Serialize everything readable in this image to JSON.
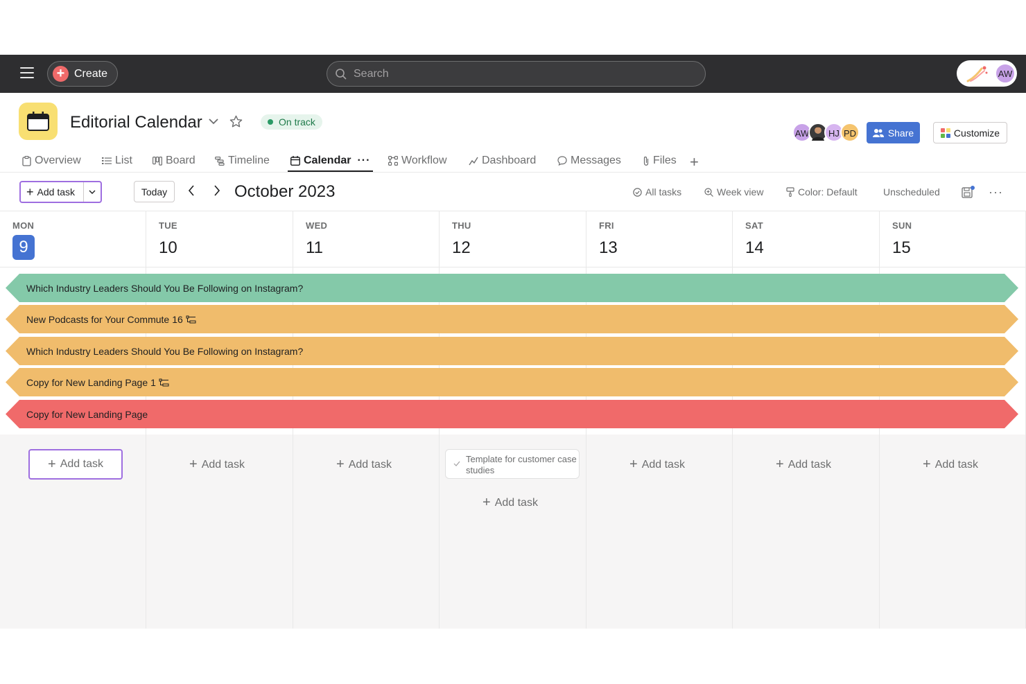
{
  "topbar": {
    "create_label": "Create",
    "search_placeholder": "Search",
    "account_initials": "AW"
  },
  "project": {
    "title": "Editorial Calendar",
    "status": "On track",
    "members": [
      {
        "initials": "AW",
        "color": "#c8a2e8"
      },
      {
        "initials": "",
        "color": "#3b3b3b"
      },
      {
        "initials": "HJ",
        "color": "#d7b5f0"
      },
      {
        "initials": "PD",
        "color": "#f5c46e"
      }
    ],
    "share_label": "Share",
    "customize_label": "Customize"
  },
  "tabs": [
    {
      "label": "Overview",
      "icon": "overview-icon"
    },
    {
      "label": "List",
      "icon": "list-icon"
    },
    {
      "label": "Board",
      "icon": "board-icon"
    },
    {
      "label": "Timeline",
      "icon": "timeline-icon"
    },
    {
      "label": "Calendar",
      "icon": "calendar-icon",
      "active": true
    },
    {
      "label": "Workflow",
      "icon": "workflow-icon"
    },
    {
      "label": "Dashboard",
      "icon": "dashboard-icon"
    },
    {
      "label": "Messages",
      "icon": "messages-icon"
    },
    {
      "label": "Files",
      "icon": "files-icon"
    }
  ],
  "toolbar": {
    "add_task_label": "Add task",
    "today_label": "Today",
    "month": "October 2023",
    "all_tasks": "All tasks",
    "week_view": "Week view",
    "color": "Color: Default",
    "unscheduled": "Unscheduled"
  },
  "days": [
    {
      "name": "MON",
      "num": "9",
      "today": true
    },
    {
      "name": "TUE",
      "num": "10"
    },
    {
      "name": "WED",
      "num": "11"
    },
    {
      "name": "THU",
      "num": "12"
    },
    {
      "name": "FRI",
      "num": "13"
    },
    {
      "name": "SAT",
      "num": "14"
    },
    {
      "name": "SUN",
      "num": "15"
    }
  ],
  "spanning_tasks": [
    {
      "title": "Which Industry Leaders Should You Be Following on Instagram?",
      "subtasks": "",
      "color": "#84c9a9"
    },
    {
      "title": "New Podcasts for Your Commute",
      "subtasks": "16",
      "color": "#f0bc6c"
    },
    {
      "title": "Which Industry Leaders Should You Be Following on Instagram?",
      "subtasks": "",
      "color": "#f0bc6c"
    },
    {
      "title": "Copy for New Landing Page",
      "subtasks": "1",
      "color": "#f0bc6c"
    },
    {
      "title": "Copy for New Landing Page",
      "subtasks": "",
      "color": "#f06a6a"
    }
  ],
  "column_add_label": "Add task",
  "thursday_task": "Template for customer case studies"
}
